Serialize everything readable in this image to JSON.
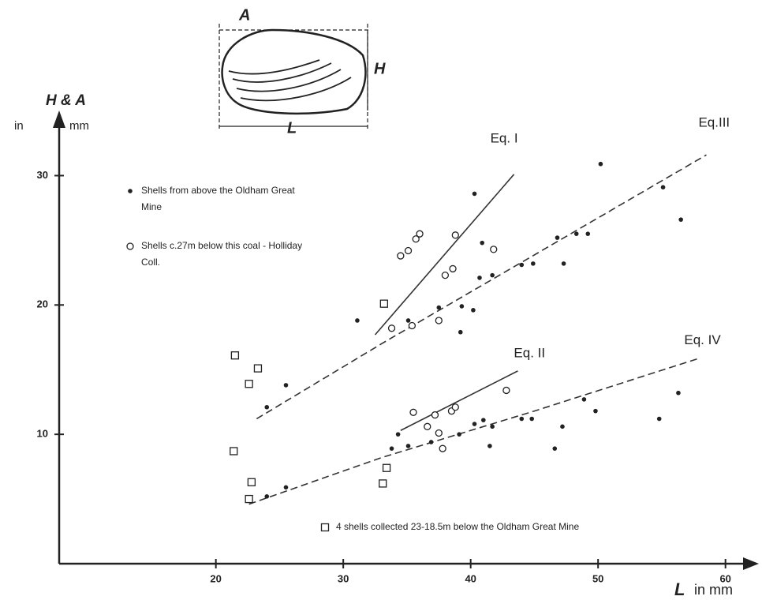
{
  "chart_data": {
    "type": "scatter",
    "y_label": "H & A",
    "y_unit_left": "in",
    "y_unit_right": "mm",
    "x_label": "L",
    "x_unit": "in mm",
    "xlim": [
      7.7,
      62
    ],
    "ylim": [
      0,
      34.3
    ],
    "xticks": [
      20,
      30,
      40,
      50,
      60
    ],
    "yticks": [
      10,
      20,
      30
    ],
    "diagram_labels": [
      "A",
      "H",
      "L"
    ],
    "series": [
      {
        "name": "Shells from above the Oldham Great Mine",
        "marker": "dot",
        "color": "#222222",
        "x": [
          24.0,
          25.5,
          31.1,
          40.3,
          40.9,
          35.1,
          37.5,
          39.3,
          40.2,
          39.2,
          40.7,
          41.7,
          44.0,
          44.9,
          46.8,
          47.3,
          48.3,
          49.2,
          50.2,
          55.1,
          56.5,
          24.0,
          25.5,
          34.3,
          33.8,
          35.1,
          36.9,
          39.1,
          40.3,
          41.0,
          41.5,
          41.7,
          44.0,
          44.8,
          47.2,
          46.6,
          48.9,
          49.8,
          54.8,
          56.3
        ],
        "y": [
          12.1,
          13.8,
          18.8,
          28.6,
          24.8,
          18.8,
          19.8,
          19.9,
          19.6,
          17.9,
          22.1,
          22.3,
          23.1,
          23.2,
          25.2,
          23.2,
          25.5,
          25.5,
          30.9,
          29.1,
          26.6,
          5.2,
          5.9,
          10.0,
          8.9,
          9.1,
          9.4,
          10.0,
          10.8,
          11.1,
          9.1,
          10.6,
          11.2,
          11.2,
          10.6,
          8.9,
          12.7,
          11.8,
          11.2,
          13.2
        ]
      },
      {
        "name": "Shells c.27m below this coal - Holliday Coll.",
        "marker": "circle",
        "color": "#222222",
        "x": [
          34.5,
          35.1,
          35.7,
          36.0,
          38.8,
          38.0,
          38.6,
          41.8,
          42.8,
          35.5,
          36.6,
          37.2,
          37.5,
          38.5,
          38.8,
          37.8,
          35.4,
          37.5,
          33.8
        ],
        "y": [
          23.8,
          24.2,
          25.1,
          25.5,
          25.4,
          22.3,
          22.8,
          24.3,
          13.4,
          11.7,
          10.6,
          11.5,
          10.1,
          11.8,
          12.1,
          8.9,
          18.4,
          18.8,
          18.2
        ]
      },
      {
        "name": "4 shells collected 23-18.5m below the Oldham Great Mine",
        "marker": "square",
        "color": "#222222",
        "x": [
          21.5,
          23.3,
          22.6,
          21.4,
          22.8,
          22.6,
          33.2,
          33.4,
          33.1
        ],
        "y": [
          16.1,
          15.1,
          13.9,
          8.7,
          6.3,
          5.0,
          20.1,
          7.4,
          6.2
        ]
      }
    ],
    "lines": [
      {
        "name": "Eq. I",
        "dashed": false,
        "x": [
          32.5,
          43.4
        ],
        "y": [
          17.7,
          30.1
        ]
      },
      {
        "name": "Eq.III",
        "dashed": true,
        "x": [
          23.2,
          33.0,
          58.5
        ],
        "y": [
          11.2,
          17.0,
          31.6
        ]
      },
      {
        "name": "Eq. II",
        "dashed": false,
        "x": [
          34.5,
          43.7
        ],
        "y": [
          10.3,
          14.9
        ]
      },
      {
        "name": "Eq. IV",
        "dashed": true,
        "x": [
          22.6,
          33.0,
          45.0,
          58.0
        ],
        "y": [
          4.6,
          8.2,
          11.8,
          15.9
        ]
      }
    ]
  }
}
